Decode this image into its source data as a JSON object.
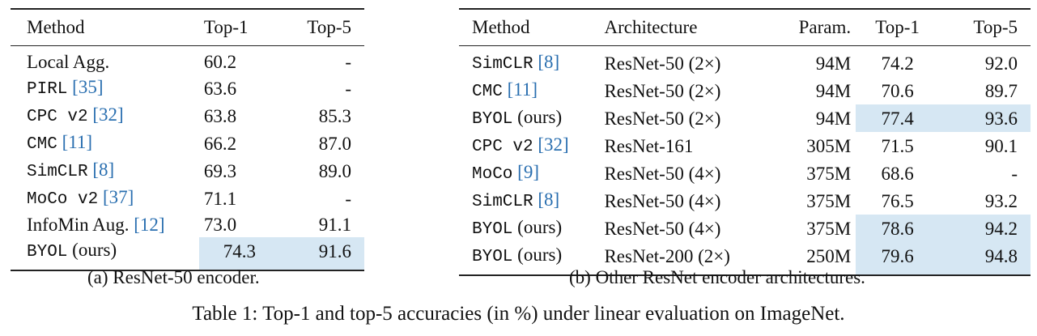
{
  "table_a": {
    "headers": [
      "Method",
      "Top-1",
      "Top-5"
    ],
    "rows": [
      {
        "method": "Local Agg.",
        "ref": "",
        "top1": "60.2",
        "top5": "-"
      },
      {
        "method": "PIRL",
        "ref": "[35]",
        "top1": "63.6",
        "top5": "-"
      },
      {
        "method": "CPC v2",
        "ref": "[32]",
        "top1": "63.8",
        "top5": "85.3"
      },
      {
        "method": "CMC",
        "ref": "[11]",
        "top1": "66.2",
        "top5": "87.0"
      },
      {
        "method": "SimCLR",
        "ref": "[8]",
        "top1": "69.3",
        "top5": "89.0"
      },
      {
        "method": "MoCo v2",
        "ref": "[37]",
        "top1": "71.1",
        "top5": "-"
      },
      {
        "method": "InfoMin Aug.",
        "ref": "[12]",
        "top1": "73.0",
        "top5": "91.1"
      },
      {
        "method": "BYOL",
        "ref": "",
        "suffix": "(ours)",
        "top1": "74.3",
        "top5": "91.6"
      }
    ],
    "caption": "(a) ResNet-50 encoder."
  },
  "table_b": {
    "headers": [
      "Method",
      "Architecture",
      "Param.",
      "Top-1",
      "Top-5"
    ],
    "rows": [
      {
        "method": "SimCLR",
        "ref": "[8]",
        "arch": "ResNet-50 (2×)",
        "params": "94M",
        "top1": "74.2",
        "top5": "92.0"
      },
      {
        "method": "CMC",
        "ref": "[11]",
        "arch": "ResNet-50 (2×)",
        "params": "94M",
        "top1": "70.6",
        "top5": "89.7"
      },
      {
        "method": "BYOL",
        "ref": "",
        "suffix": "(ours)",
        "arch": "ResNet-50 (2×)",
        "params": "94M",
        "top1": "77.4",
        "top5": "93.6"
      },
      {
        "method": "CPC v2",
        "ref": "[32]",
        "arch": "ResNet-161",
        "params": "305M",
        "top1": "71.5",
        "top5": "90.1"
      },
      {
        "method": "MoCo",
        "ref": "[9]",
        "arch": "ResNet-50 (4×)",
        "params": "375M",
        "top1": "68.6",
        "top5": "-"
      },
      {
        "method": "SimCLR",
        "ref": "[8]",
        "arch": "ResNet-50 (4×)",
        "params": "375M",
        "top1": "76.5",
        "top5": "93.2"
      },
      {
        "method": "BYOL",
        "ref": "",
        "suffix": "(ours)",
        "arch": "ResNet-50 (4×)",
        "params": "375M",
        "top1": "78.6",
        "top5": "94.2"
      },
      {
        "method": "BYOL",
        "ref": "",
        "suffix": "(ours)",
        "arch": "ResNet-200 (2×)",
        "params": "250M",
        "top1": "79.6",
        "top5": "94.8"
      }
    ],
    "caption": "(b) Other ResNet encoder architectures."
  },
  "main_caption": "Table 1: Top-1 and top-5 accuracies (in %) under linear evaluation on ImageNet.",
  "colors": {
    "highlight": "#d6e7f3",
    "citation": "#2a6fb0"
  }
}
